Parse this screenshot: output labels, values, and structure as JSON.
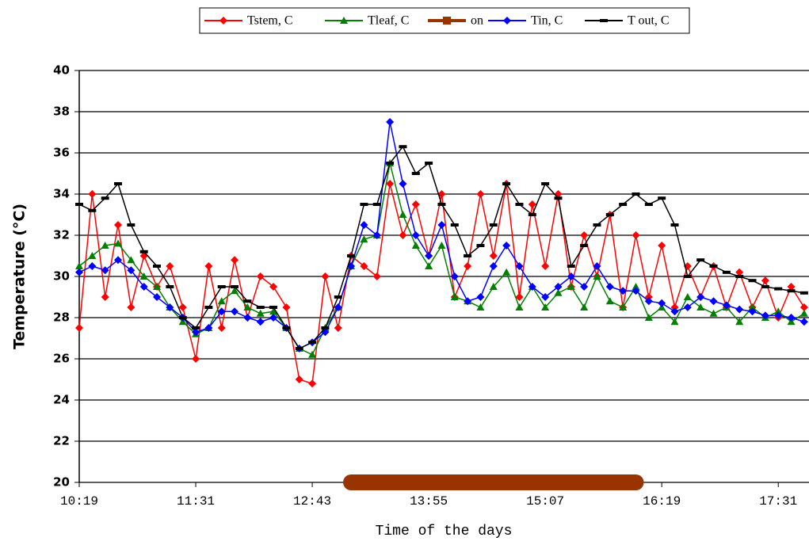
{
  "chart_data": {
    "type": "line",
    "y_label": "Temperature (°C)",
    "x_label": "Time of the days",
    "x": [
      619,
      627,
      635,
      643,
      651,
      659,
      667,
      675,
      683,
      691,
      699,
      707,
      715,
      723,
      731,
      739,
      747,
      755,
      763,
      771,
      779,
      787,
      795,
      803,
      811,
      819,
      827,
      835,
      843,
      851,
      859,
      867,
      875,
      883,
      891,
      899,
      907,
      915,
      923,
      931,
      939,
      947,
      955,
      963,
      971,
      979,
      987,
      995,
      1003,
      1011,
      1019,
      1027,
      1035,
      1043,
      1051,
      1059,
      1067
    ],
    "xlim": [
      619,
      1070
    ],
    "xticks": [
      {
        "value": 619,
        "label": "10:19"
      },
      {
        "value": 691,
        "label": "11:31"
      },
      {
        "value": 763,
        "label": "12:43"
      },
      {
        "value": 835,
        "label": "13:55"
      },
      {
        "value": 907,
        "label": "15:07"
      },
      {
        "value": 979,
        "label": "16:19"
      },
      {
        "value": 1051,
        "label": "17:31"
      }
    ],
    "ylim": [
      20,
      40
    ],
    "yticks": [
      20,
      22,
      24,
      26,
      28,
      30,
      32,
      34,
      36,
      38,
      40
    ],
    "grid": true,
    "series": [
      {
        "name": "Tstem, C",
        "color": "#ff0000",
        "marker": "diamond",
        "values": [
          27.5,
          34.0,
          29,
          32.5,
          28.5,
          31,
          29.5,
          30.5,
          28.5,
          26,
          30.5,
          27.5,
          30.8,
          28,
          30,
          29.5,
          28.5,
          25,
          24.8,
          30,
          27.5,
          31,
          30.5,
          30,
          34.5,
          32,
          33.5,
          31,
          34,
          29,
          30.5,
          34,
          31,
          34.5,
          29,
          33.5,
          30.5,
          34,
          29.5,
          32,
          30,
          33,
          28.5,
          32,
          29,
          31.5,
          28.5,
          30.5,
          29,
          30.5,
          28.5,
          30.2,
          28.5,
          29.8,
          28,
          29.5,
          28.5
        ]
      },
      {
        "name": "Tleaf, C",
        "color": "#008000",
        "marker": "triangle",
        "values": [
          30.5,
          31.0,
          31.5,
          31.6,
          30.8,
          30,
          29.5,
          28.5,
          27.8,
          27.2,
          27.5,
          28.8,
          29.3,
          28.5,
          28.2,
          28.3,
          27.5,
          26.5,
          26.2,
          27.5,
          28.5,
          30.5,
          31.8,
          32,
          35.5,
          33,
          31.5,
          30.5,
          31.5,
          29,
          28.8,
          28.5,
          29.5,
          30.2,
          28.5,
          29.5,
          28.5,
          29.2,
          29.5,
          28.5,
          30,
          28.8,
          28.5,
          29.5,
          28,
          28.5,
          27.8,
          29,
          28.5,
          28.2,
          28.5,
          27.8,
          28.5,
          28,
          28.3,
          27.8,
          28.2
        ]
      },
      {
        "name": "on",
        "color": "#993300",
        "marker": "square",
        "values": [
          null,
          null,
          null,
          null,
          null,
          null,
          null,
          null,
          null,
          null,
          null,
          null,
          null,
          null,
          null,
          null,
          null,
          null,
          null,
          null,
          null,
          20,
          20,
          20,
          20,
          20,
          20,
          20,
          20,
          20,
          20,
          20,
          20,
          20,
          20,
          20,
          20,
          20,
          20,
          20,
          20,
          20,
          20,
          20,
          null,
          null,
          null,
          null,
          null,
          null,
          null,
          null,
          null,
          null,
          null,
          null,
          null
        ]
      },
      {
        "name": "Tin, C",
        "color": "#0000ff",
        "marker": "diamond",
        "values": [
          30.2,
          30.5,
          30.3,
          30.8,
          30.3,
          29.5,
          29,
          28.5,
          28,
          27.3,
          27.5,
          28.3,
          28.3,
          28,
          27.8,
          28,
          27.5,
          26.5,
          26.8,
          27.3,
          28.5,
          30.5,
          32.5,
          32,
          37.5,
          34.5,
          32,
          31,
          32.5,
          30,
          28.8,
          29,
          30.5,
          31.5,
          30.5,
          29.5,
          29,
          29.5,
          30,
          29.5,
          30.5,
          29.5,
          29.3,
          29.3,
          28.8,
          28.7,
          28.3,
          28.5,
          29,
          28.8,
          28.6,
          28.4,
          28.3,
          28.1,
          28.1,
          28.0,
          27.8
        ]
      },
      {
        "name": "T out, C",
        "color": "#000000",
        "marker": "dash",
        "values": [
          33.5,
          33.2,
          33.8,
          34.5,
          32.5,
          31.2,
          30.5,
          29.5,
          28.0,
          27.5,
          28.5,
          29.5,
          29.5,
          28.8,
          28.5,
          28.5,
          27.5,
          26.5,
          26.8,
          27.5,
          29,
          31,
          33.5,
          33.5,
          35.5,
          36.3,
          35,
          35.5,
          33.5,
          32.5,
          31,
          31.5,
          32.5,
          34.5,
          33.5,
          33.0,
          34.5,
          33.8,
          30.5,
          31.5,
          32.5,
          33,
          33.5,
          34,
          33.5,
          33.8,
          32.5,
          30,
          30.8,
          30.5,
          30.2,
          30,
          29.8,
          29.5,
          29.4,
          29.3,
          29.2
        ]
      }
    ]
  }
}
